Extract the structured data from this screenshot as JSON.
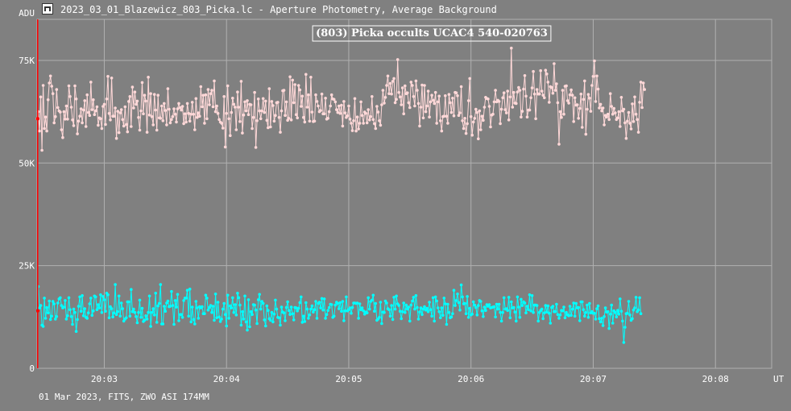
{
  "window": {
    "title": "2023_03_01_Blazewicz_803_Picka.lc - Aperture Photometry, Average Background",
    "app_icon": "lightcurve-app-icon"
  },
  "footer": {
    "info": "01 Mar 2023, FITS, ZWO ASI 174MM"
  },
  "colors": {
    "background": "#808080",
    "grid": "#b0b0b0",
    "cursor": "#ff0000",
    "target_series": "#ffd8d8",
    "comparison_series": "#00ffff"
  },
  "chart_data": {
    "type": "scatter",
    "title": "(803) Picka occults UCAC4 540-020763",
    "ylabel": "ADU",
    "xlabel": "UT",
    "ylim": [
      0,
      85000
    ],
    "xlim_minutes": [
      2.45,
      8.46
    ],
    "grid": true,
    "y_ticks": [
      {
        "value": 0,
        "label": "0"
      },
      {
        "value": 25000,
        "label": "25K"
      },
      {
        "value": 50000,
        "label": "50K"
      },
      {
        "value": 75000,
        "label": "75K"
      }
    ],
    "x_ticks": [
      {
        "value": 3,
        "label": "20:03"
      },
      {
        "value": 4,
        "label": "20:04"
      },
      {
        "value": 5,
        "label": "20:05"
      },
      {
        "value": 6,
        "label": "20:06"
      },
      {
        "value": 7,
        "label": "20:07"
      },
      {
        "value": 8,
        "label": "20:08"
      }
    ],
    "cursor_x": 2.455,
    "x_start": 2.45,
    "x_step": 0.01,
    "series": [
      {
        "role": "target",
        "color": "#ffd8d8",
        "values": [
          60800,
          62500,
          57800,
          66100,
          53100,
          68900,
          58400,
          61200,
          57800,
          65400,
          69500,
          71200,
          68700,
          66900,
          59800,
          61300,
          67900,
          63500,
          62700,
          62400,
          58100,
          56200,
          62500,
          60700,
          63900,
          60700,
          68800,
          66200,
          63600,
          60500,
          59100,
          68800,
          65600,
          57100,
          60200,
          61400,
          63200,
          59800,
          62900,
          65200,
          58900,
          66600,
          62300,
          61600,
          69700,
          63000,
          65400,
          61800,
          62700,
          63700,
          59200,
          61000,
          60800,
          58400,
          63800,
          64300,
          59400,
          65600,
          71100,
          62100,
          60500,
          70700,
          61400,
          61400,
          63400,
          56000,
          62600,
          57400,
          62200,
          63000,
          60600,
          59000,
          63700,
          59400,
          57600,
          65000,
          66200,
          58900,
          68500,
          63400,
          67300,
          64300,
          65100,
          61100,
          58000,
          62700,
          69600,
          62000,
          66500,
          65100,
          57500,
          70900,
          61700,
          66900,
          61300,
          59300,
          66700,
          62900,
          58000,
          66500,
          61000,
          60900,
          63900,
          60300,
          64500,
          62800,
          59300,
          68100,
          63100,
          59800,
          60600,
          61300,
          63200,
          61900,
          60000,
          63200,
          64500,
          63500,
          62900,
          63800,
          59600,
          62000,
          60000,
          64500,
          62100,
          60200,
          61900,
          64800,
          61900,
          58100,
          65700,
          61100,
          62200,
          61400,
          68600,
          63700,
          66500,
          59700,
          66600,
          60800,
          67900,
          64200,
          66900,
          67700,
          63700,
          70000,
          62500,
          63900,
          62100,
          60600,
          60000,
          59700,
          58500,
          66200,
          53900,
          62100,
          68800,
          60800,
          56700,
          62300,
          65800,
          64300,
          63600,
          58100,
          67300,
          63600,
          60100,
          69900,
          57300,
          61700,
          64900,
          62700,
          65200,
          61800,
          64300,
          64200,
          58400,
          61100,
          67200,
          53800,
          60300,
          65600,
          62700,
          60800,
          62700,
          65700,
          62300,
          65100,
          60400,
          58600,
          68100,
          58800,
          65000,
          64000,
          60200,
          61600,
          64700,
          64800,
          61100,
          57500,
          62700,
          67600,
          67700,
          61600,
          64900,
          60400,
          60900,
          71000,
          60500,
          70200,
          64700,
          69100,
          61800,
          61000,
          68900,
          67800,
          63800,
          66300,
          61100,
          60000,
          71600,
          63600,
          66600,
          60200,
          70900,
          62400,
          60100,
          60200,
          66600,
          65000,
          63900,
          62500,
          62800,
          66800,
          62000,
          62000,
          65800,
          60700,
          60900,
          62500,
          63900,
          66600,
          65600,
          65500,
          64900,
          63000,
          62300,
          63900,
          62100,
          64100,
          59000,
          65000,
          62200,
          61100,
          61500,
          63900,
          60700,
          59700,
          57900,
          60300,
          65700,
          57800,
          61200,
          58300,
          59700,
          64900,
          61600,
          59700,
          62400,
          62100,
          59800,
          63000,
          60500,
          61300,
          66200,
          60600,
          59600,
          58400,
          63800,
          62400,
          60300,
          59200,
          64200,
          67700,
          64600,
          66000,
          68900,
          71200,
          66900,
          69400,
          66800,
          69900,
          70600,
          64700,
          65500,
          75200,
          67200,
          66100,
          64200,
          68300,
          62000,
          68800,
          66900,
          67100,
          64700,
          63500,
          69700,
          68900,
          66200,
          63900,
          70000,
          67700,
          64500,
          59000,
          63600,
          69000,
          61000,
          68900,
          62500,
          63900,
          67500,
          61200,
          64900,
          66500,
          65300,
          64500,
          67200,
          59700,
          64900,
          66300,
          60300,
          57800,
          61300,
          61400,
          66400,
          61400,
          59700,
          66700,
          64700,
          62300,
          65800,
          61500,
          67200,
          67100,
          66400,
          61600,
          62200,
          68600,
          60300,
          58400,
          60900,
          57200,
          59600,
          65200,
          70600,
          61300,
          56800,
          60000,
          60900,
          63100,
          62300,
          55900,
          62700,
          58100,
          61400,
          60400,
          63600,
          66000,
          65700,
          65600,
          63800,
          58800,
          61700,
          61900,
          64900,
          67700,
          64900,
          65300,
          65000,
          59600,
          63100,
          65900,
          67100,
          63000,
          62200,
          67500,
          60500,
          66100,
          78000,
          63600,
          67200,
          64600,
          64500,
          67300,
          68400,
          67700,
          61200,
          62600,
          68000,
          71300,
          66300,
          61200,
          62900,
          62900,
          65900,
          68300,
          72300,
          66800,
          60800,
          67900,
          66800,
          66800,
          72500,
          67500,
          66500,
          65900,
          72600,
          71700,
          69700,
          64800,
          68600,
          68400,
          67000,
          74200,
          67700,
          69300,
          64700,
          54600,
          62500,
          61100,
          67700,
          61900,
          68700,
          68800,
          65200,
          64600,
          66600,
          67800,
          66500,
          60100,
          65900,
          64100,
          64200,
          60900,
          63300,
          66800,
          58700,
          65500,
          70000,
          57000,
          63100,
          66700,
          65800,
          62600,
          68900,
          71100,
          74900,
          65000,
          71200,
          68000,
          63400,
          64300,
          62700,
          63400,
          59300,
          61600,
          61200,
          61900,
          60600,
          66900,
          63800,
          61900,
          63300,
          62200,
          60600,
          61000,
          62500,
          58900,
          66000,
          62700,
          63100,
          59800,
          56000,
          60200,
          62300,
          59700,
          58300,
          64400,
          60100,
          66100,
          61900,
          60600,
          57500,
          64800,
          69700,
          63500,
          69500,
          67900
        ]
      },
      {
        "role": "comparison",
        "color": "#00ffff",
        "values": [
          14000,
          19900,
          14700,
          15300,
          10500,
          10200,
          17100,
          12200,
          14800,
          13500,
          16400,
          11900,
          12700,
          16300,
          15700,
          12000,
          12600,
          15900,
          16900,
          17200,
          15300,
          14700,
          14900,
          16500,
          12000,
          12800,
          17200,
          14300,
          12600,
          10700,
          14400,
          13600,
          9000,
          11900,
          15100,
          17400,
          13900,
          17700,
          12800,
          14500,
          12400,
          12200,
          13500,
          15700,
          17100,
          12900,
          14000,
          17600,
          17400,
          14300,
          15500,
          14700,
          17900,
          13600,
          17500,
          16700,
          13900,
          18300,
          17900,
          12300,
          15000,
          14500,
          12500,
          13500,
          20400,
          13100,
          13800,
          17600,
          12700,
          15900,
          14500,
          11500,
          12000,
          12300,
          16200,
          16200,
          12700,
          19200,
          13800,
          14400,
          13600,
          12600,
          11100,
          13600,
          16600,
          12400,
          14600,
          11400,
          11700,
          12800,
          12000,
          13600,
          17600,
          10200,
          13600,
          14500,
          13000,
          18300,
          11200,
          15200,
          15800,
          20400,
          10800,
          10800,
          15100,
          13900,
          15900,
          16400,
          15000,
          15100,
          18700,
          15300,
          10700,
          16500,
          14900,
          18000,
          11600,
          13100,
          13100,
          12400,
          16500,
          17100,
          17100,
          19000,
          12700,
          19300,
          11300,
          14900,
          11900,
          10800,
          16300,
          14700,
          12200,
          15000,
          14700,
          15000,
          13300,
          13300,
          17800,
          17100,
          14200,
          14800,
          15300,
          13600,
          15100,
          11700,
          18100,
          12300,
          16100,
          12500,
          11400,
          12000,
          14400,
          15800,
          13100,
          10300,
          17800,
          12200,
          15200,
          14700,
          17200,
          13600,
          15500,
          13000,
          18300,
          17200,
          15400,
          10500,
          13800,
          12000,
          17600,
          11300,
          9300,
          16700,
          10100,
          13800,
          13100,
          15500,
          15400,
          14200,
          10900,
          16700,
          18000,
          14400,
          16300,
          15800,
          11800,
          10300,
          15200,
          14100,
          12100,
          11700,
          13600,
          11300,
          13200,
          16600,
          14400,
          12400,
          12300,
          10500,
          14900,
          13700,
          13500,
          11600,
          14800,
          16200,
          14100,
          13100,
          14900,
          13300,
          11800,
          14800,
          14700,
          14000,
          14600,
          16000,
          17400,
          11200,
          12700,
          11400,
          16000,
          14400,
          12200,
          13000,
          14400,
          15200,
          13700,
          14300,
          16300,
          12200,
          15800,
          16100,
          14700,
          17000,
          14200,
          16900,
          12200,
          13100,
          14100,
          14800,
          15600,
          15500,
          12400,
          12700,
          15400,
          16100,
          15800,
          14500,
          16000,
          13900,
          16300,
          11600,
          14000,
          17400,
          14000,
          14300,
          14700,
          13400,
          14800,
          15900,
          15900,
          15800,
          15900,
          12200,
          15700,
          14300,
          14700,
          14000,
          13200,
          13700,
          13500,
          17200,
          14400,
          16300,
          16600,
          17800,
          13900,
          15800,
          11700,
          12000,
          12400,
          16100,
          10900,
          13700,
          13600,
          16400,
          15900,
          14500,
          14300,
          12700,
          15300,
          11900,
          17300,
          14400,
          17600,
          15700,
          15300,
          13900,
          12100,
          13800,
          15900,
          13600,
          15400,
          14400,
          14900,
          11500,
          15400,
          16400,
          17300,
          14400,
          17700,
          14800,
          12000,
          13700,
          14700,
          13100,
          14400,
          15000,
          14200,
          14600,
          13800,
          16100,
          14300,
          12700,
          17200,
          11500,
          17400,
          16400,
          14700,
          13800,
          12300,
          14700,
          12900,
          17100,
          15700,
          10700,
          15600,
          13600,
          12300,
          12500,
          13300,
          19000,
          15300,
          16500,
          18100,
          16000,
          14200,
          20300,
          17400,
          15700,
          15800,
          13300,
          17500,
          12400,
          14600,
          13000,
          13200,
          16200,
          15400,
          14800,
          13000,
          15300,
          16500,
          16300,
          14000,
          12600,
          14900,
          14100,
          15500,
          15100,
          15500,
          14700,
          14800,
          14900,
          15000,
          12500,
          15600,
          14400,
          15600,
          13600,
          11500,
          13600,
          17200,
          14400,
          14500,
          14100,
          17300,
          12300,
          16200,
          14700,
          14800,
          13700,
          11500,
          17400,
          14900,
          12400,
          16800,
          15300,
          16200,
          15900,
          13500,
          15100,
          14300,
          17900,
          14000,
          17700,
          13600,
          15400,
          15400,
          15300,
          11500,
          13600,
          14100,
          14400,
          12100,
          13500,
          15300,
          13700,
          15200,
          13400,
          11000,
          14800,
          15100,
          13800,
          13800,
          15600,
          13100,
          12200,
          13000,
          14100,
          14000,
          14900,
          12300,
          13600,
          13000,
          12800,
          15100,
          12900,
          14400,
          15900,
          12700,
          15800,
          14700,
          14800,
          11600,
          16200,
          16200,
          14300,
          12700,
          13600,
          15400,
          12400,
          15800,
          13500,
          13800,
          13400,
          13400,
          12000,
          14500,
          15200,
          12100,
          11300,
          12200,
          10400,
          12600,
          14700,
          13700,
          13800,
          9700,
          13200,
          15400,
          11000,
          14000,
          13600,
          12500,
          14100,
          13200,
          16900,
          13900,
          11500,
          6300,
          10000,
          13300,
          13400,
          16300,
          13000,
          11700,
          12100,
          14200,
          14700,
          17300,
          13800,
          14200,
          17200,
          13300
        ]
      }
    ]
  }
}
